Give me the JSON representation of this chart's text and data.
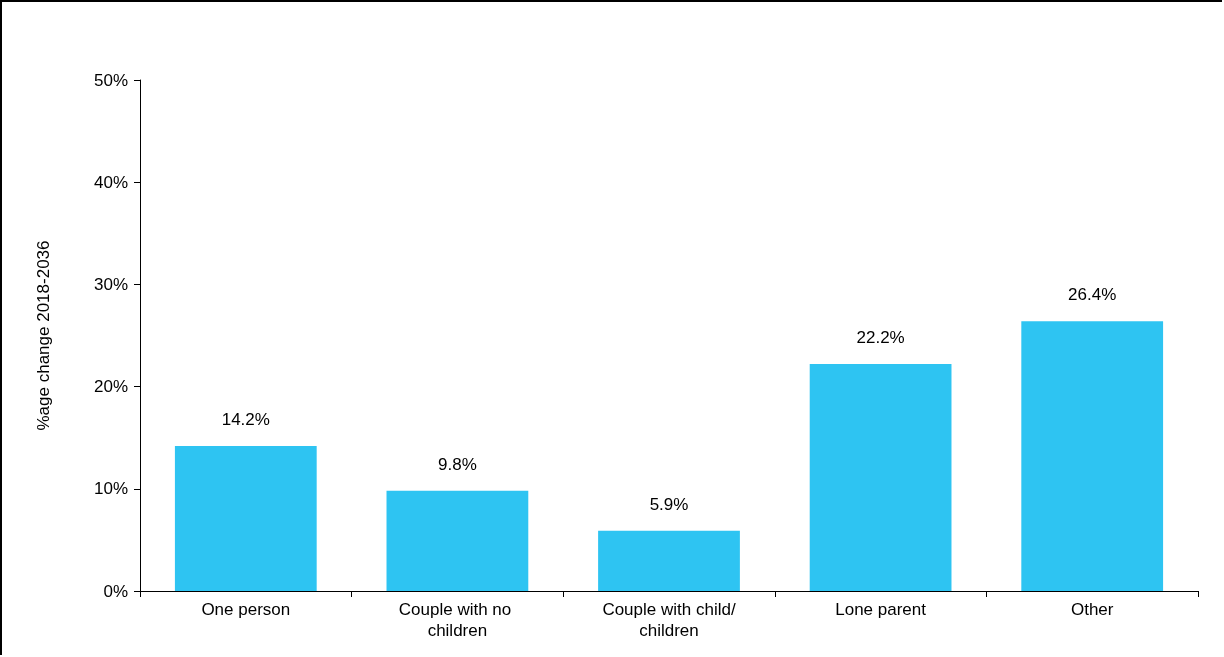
{
  "chart_data": {
    "type": "bar",
    "ylabel": "%age change 2018-2036",
    "categories": [
      "One person",
      "Couple with no children",
      "Couple with child/children",
      "Lone parent",
      "Other"
    ],
    "values": [
      14.2,
      9.8,
      5.9,
      22.2,
      26.4
    ],
    "value_labels": [
      "14.2%",
      "9.8%",
      "5.9%",
      "22.2%",
      "26.4%"
    ],
    "color": "#2ec4f2",
    "ylim": [
      0,
      50
    ],
    "yticks": [
      {
        "value": 0,
        "label": "0%"
      },
      {
        "value": 10,
        "label": "10%"
      },
      {
        "value": 20,
        "label": "20%"
      },
      {
        "value": 30,
        "label": "30%"
      },
      {
        "value": 40,
        "label": "40%"
      },
      {
        "value": 50,
        "label": "50%"
      }
    ],
    "grid": false
  }
}
